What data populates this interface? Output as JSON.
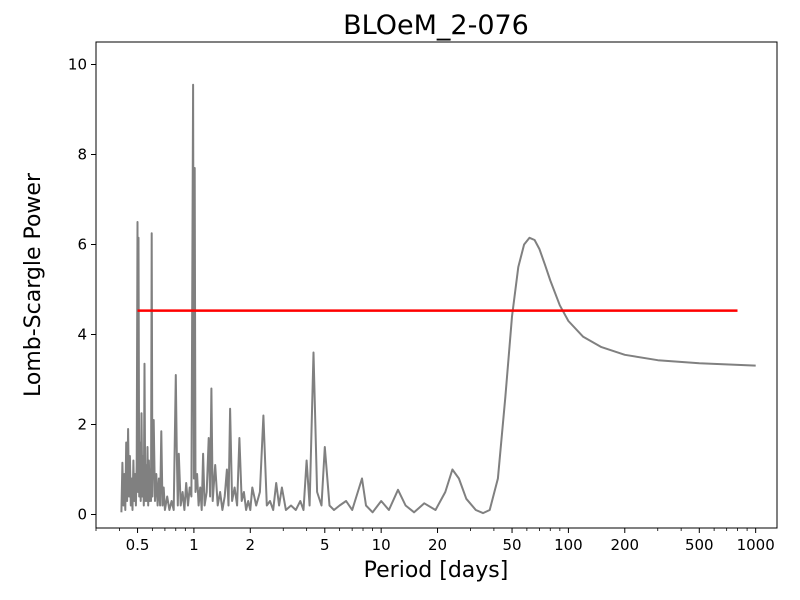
{
  "chart_data": {
    "type": "line",
    "title": "BLOeM_2-076",
    "xlabel": "Period [days]",
    "ylabel": "Lomb-Scargle Power",
    "x_scale": "log",
    "xlim": [
      0.3,
      1300
    ],
    "ylim": [
      -0.3,
      10.5
    ],
    "grid": false,
    "x_ticks": [
      {
        "value": 0.5,
        "label": "0.5"
      },
      {
        "value": 1,
        "label": "1"
      },
      {
        "value": 2,
        "label": "2"
      },
      {
        "value": 5,
        "label": "5"
      },
      {
        "value": 10,
        "label": "10"
      },
      {
        "value": 20,
        "label": "20"
      },
      {
        "value": 50,
        "label": "50"
      },
      {
        "value": 100,
        "label": "100"
      },
      {
        "value": 200,
        "label": "200"
      },
      {
        "value": 500,
        "label": "500"
      },
      {
        "value": 1000,
        "label": "1000"
      }
    ],
    "y_ticks": [
      {
        "value": 0,
        "label": "0"
      },
      {
        "value": 2,
        "label": "2"
      },
      {
        "value": 4,
        "label": "4"
      },
      {
        "value": 6,
        "label": "6"
      },
      {
        "value": 8,
        "label": "8"
      },
      {
        "value": 10,
        "label": "10"
      }
    ],
    "series": [
      {
        "color": "#808080",
        "points": [
          [
            0.41,
            0.05
          ],
          [
            0.415,
            1.15
          ],
          [
            0.42,
            0.2
          ],
          [
            0.425,
            0.9
          ],
          [
            0.43,
            0.1
          ],
          [
            0.435,
            1.6
          ],
          [
            0.44,
            0.3
          ],
          [
            0.445,
            1.9
          ],
          [
            0.45,
            0.4
          ],
          [
            0.455,
            1.3
          ],
          [
            0.46,
            0.2
          ],
          [
            0.465,
            0.8
          ],
          [
            0.47,
            0.1
          ],
          [
            0.475,
            1.2
          ],
          [
            0.48,
            0.3
          ],
          [
            0.485,
            0.9
          ],
          [
            0.49,
            0.2
          ],
          [
            0.495,
            1.1
          ],
          [
            0.5,
            6.5
          ],
          [
            0.503,
            0.5
          ],
          [
            0.506,
            6.15
          ],
          [
            0.51,
            0.4
          ],
          [
            0.515,
            1.6
          ],
          [
            0.52,
            0.3
          ],
          [
            0.525,
            2.25
          ],
          [
            0.53,
            0.4
          ],
          [
            0.535,
            1.3
          ],
          [
            0.54,
            0.2
          ],
          [
            0.545,
            3.35
          ],
          [
            0.55,
            0.3
          ],
          [
            0.555,
            1.1
          ],
          [
            0.56,
            0.3
          ],
          [
            0.565,
            1.5
          ],
          [
            0.57,
            0.2
          ],
          [
            0.575,
            1.2
          ],
          [
            0.58,
            0.3
          ],
          [
            0.585,
            1.0
          ],
          [
            0.59,
            0.3
          ],
          [
            0.595,
            6.25
          ],
          [
            0.6,
            0.4
          ],
          [
            0.605,
            1.4
          ],
          [
            0.61,
            2.1
          ],
          [
            0.62,
            0.3
          ],
          [
            0.63,
            0.9
          ],
          [
            0.64,
            0.2
          ],
          [
            0.65,
            0.8
          ],
          [
            0.66,
            0.2
          ],
          [
            0.67,
            1.85
          ],
          [
            0.68,
            0.2
          ],
          [
            0.69,
            0.6
          ],
          [
            0.7,
            0.1
          ],
          [
            0.72,
            0.4
          ],
          [
            0.74,
            0.1
          ],
          [
            0.76,
            0.3
          ],
          [
            0.78,
            0.1
          ],
          [
            0.8,
            3.1
          ],
          [
            0.81,
            1.35
          ],
          [
            0.82,
            0.2
          ],
          [
            0.83,
            1.35
          ],
          [
            0.85,
            0.2
          ],
          [
            0.87,
            0.5
          ],
          [
            0.89,
            0.1
          ],
          [
            0.91,
            0.7
          ],
          [
            0.93,
            0.2
          ],
          [
            0.95,
            0.6
          ],
          [
            0.97,
            0.4
          ],
          [
            0.99,
            9.55
          ],
          [
            1.0,
            0.8
          ],
          [
            1.01,
            7.7
          ],
          [
            1.02,
            0.5
          ],
          [
            1.04,
            0.9
          ],
          [
            1.06,
            0.2
          ],
          [
            1.08,
            0.6
          ],
          [
            1.1,
            0.1
          ],
          [
            1.12,
            1.35
          ],
          [
            1.14,
            0.2
          ],
          [
            1.17,
            0.5
          ],
          [
            1.2,
            1.7
          ],
          [
            1.22,
            0.4
          ],
          [
            1.24,
            2.8
          ],
          [
            1.26,
            0.3
          ],
          [
            1.3,
            1.1
          ],
          [
            1.34,
            0.2
          ],
          [
            1.38,
            0.5
          ],
          [
            1.42,
            0.1
          ],
          [
            1.46,
            0.4
          ],
          [
            1.5,
            1.0
          ],
          [
            1.53,
            0.2
          ],
          [
            1.56,
            2.35
          ],
          [
            1.6,
            0.3
          ],
          [
            1.65,
            0.6
          ],
          [
            1.7,
            0.2
          ],
          [
            1.75,
            1.7
          ],
          [
            1.8,
            0.3
          ],
          [
            1.85,
            0.5
          ],
          [
            1.9,
            0.1
          ],
          [
            1.95,
            0.3
          ],
          [
            2.0,
            0.1
          ],
          [
            2.05,
            0.6
          ],
          [
            2.15,
            0.2
          ],
          [
            2.25,
            0.5
          ],
          [
            2.35,
            2.2
          ],
          [
            2.45,
            0.2
          ],
          [
            2.55,
            0.3
          ],
          [
            2.65,
            0.1
          ],
          [
            2.75,
            0.7
          ],
          [
            2.85,
            0.2
          ],
          [
            2.95,
            0.6
          ],
          [
            3.1,
            0.1
          ],
          [
            3.3,
            0.2
          ],
          [
            3.5,
            0.1
          ],
          [
            3.7,
            0.3
          ],
          [
            3.85,
            0.1
          ],
          [
            4.0,
            1.2
          ],
          [
            4.15,
            0.2
          ],
          [
            4.35,
            3.6
          ],
          [
            4.55,
            0.5
          ],
          [
            4.8,
            0.2
          ],
          [
            5.0,
            1.5
          ],
          [
            5.3,
            0.2
          ],
          [
            5.6,
            0.1
          ],
          [
            6.0,
            0.2
          ],
          [
            6.5,
            0.3
          ],
          [
            7.0,
            0.1
          ],
          [
            7.5,
            0.5
          ],
          [
            7.9,
            0.8
          ],
          [
            8.3,
            0.2
          ],
          [
            9.0,
            0.05
          ],
          [
            10.0,
            0.3
          ],
          [
            11.0,
            0.1
          ],
          [
            12.3,
            0.55
          ],
          [
            13.5,
            0.2
          ],
          [
            15.0,
            0.05
          ],
          [
            17.0,
            0.25
          ],
          [
            19.5,
            0.1
          ],
          [
            22.0,
            0.5
          ],
          [
            24.0,
            1.0
          ],
          [
            26.0,
            0.8
          ],
          [
            28.5,
            0.35
          ],
          [
            32.0,
            0.1
          ],
          [
            35.0,
            0.03
          ],
          [
            38.0,
            0.1
          ],
          [
            42.0,
            0.8
          ],
          [
            46.0,
            2.6
          ],
          [
            50.0,
            4.4
          ],
          [
            54.0,
            5.5
          ],
          [
            58.0,
            6.0
          ],
          [
            62.0,
            6.15
          ],
          [
            66.0,
            6.1
          ],
          [
            70.0,
            5.9
          ],
          [
            75.0,
            5.55
          ],
          [
            80.0,
            5.2
          ],
          [
            90.0,
            4.65
          ],
          [
            100.0,
            4.3
          ],
          [
            120.0,
            3.95
          ],
          [
            150.0,
            3.72
          ],
          [
            200.0,
            3.55
          ],
          [
            300.0,
            3.43
          ],
          [
            500.0,
            3.36
          ],
          [
            1000.0,
            3.31
          ]
        ]
      },
      {
        "color": "#ff0000",
        "points": [
          [
            0.5,
            4.53
          ],
          [
            800.0,
            4.53
          ]
        ]
      }
    ]
  }
}
